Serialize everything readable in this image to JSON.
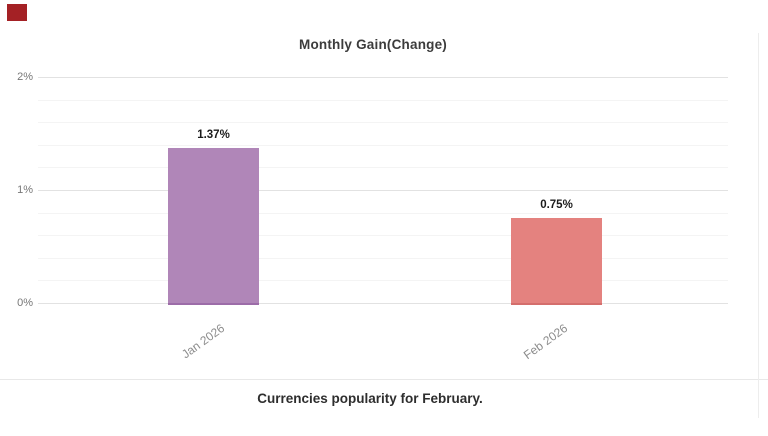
{
  "chart_data": {
    "type": "bar",
    "title": "Monthly Gain(Change)",
    "categories": [
      "Jan 2026",
      "Feb 2026"
    ],
    "values": [
      1.37,
      0.75
    ],
    "data_labels": [
      "1.37%",
      "0.75%"
    ],
    "yticks": [
      {
        "value": 0,
        "label": "0%"
      },
      {
        "value": 1,
        "label": "1%"
      },
      {
        "value": 2,
        "label": "2%"
      }
    ],
    "ylim": [
      0,
      2.1
    ],
    "minor_grid_step": 0.2,
    "grid": "on",
    "legend": "none",
    "xlabel": "",
    "ylabel": "",
    "bar_colors": [
      "#b086b8",
      "#e4827f"
    ],
    "bar_edge_colors": [
      "#9c6ca8",
      "#d46e6c"
    ]
  },
  "caption": {
    "text": "Currencies popularity for February."
  },
  "indicator": {
    "color": "#a42125"
  }
}
